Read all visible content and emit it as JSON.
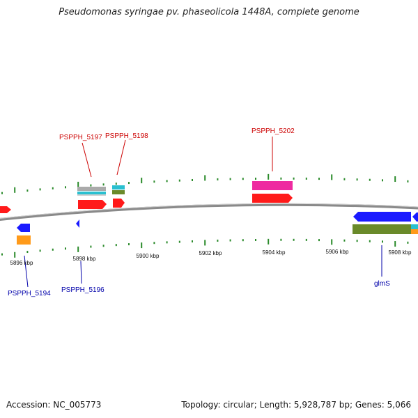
{
  "title": "Pseudomonas syringae pv. phaseolicola 1448A, complete genome",
  "footer": {
    "accession": "Accession: NC_005773",
    "summary": "Topology: circular; Length: 5,928,787 bp; Genes: 5,066"
  },
  "colors": {
    "backbone": "#8a8a8a",
    "ticks": "#2a8a2a",
    "label_red": "#cc0000",
    "label_blue": "#0000aa",
    "gene_red": "#ff1a1a",
    "gene_blue": "#1a1aff",
    "gene_orange": "#ff9a1a",
    "gene_magenta": "#ee2aa0",
    "gene_olive": "#6a8a2a",
    "gene_cyan": "#2ac0d0",
    "gene_gray": "#aaaaaa"
  },
  "axis_labels": [
    "5896 kbp",
    "5898 kbp",
    "5900 kbp",
    "5902 kbp",
    "5904 kbp",
    "5906 kbp",
    "5908 kbp"
  ],
  "gene_labels": {
    "top": [
      "PSPPH_5197",
      "PSPPH_5198",
      "PSPPH_5202"
    ],
    "bottom": [
      "PSPPH_5194",
      "PSPPH_5196",
      "glmS"
    ]
  }
}
